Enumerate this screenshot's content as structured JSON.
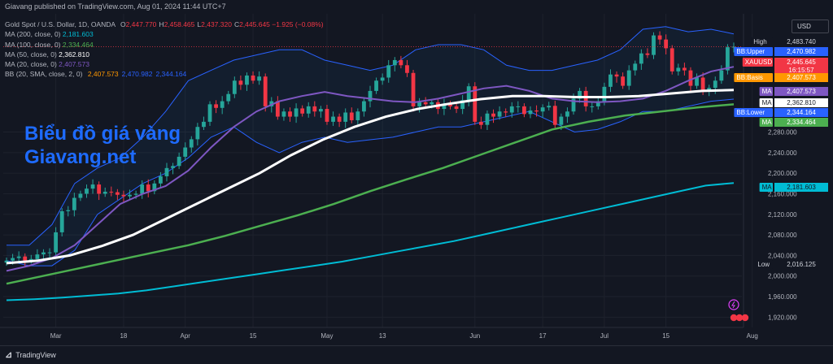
{
  "header": {
    "publisher": "Giavang published on TradingView.com, Aug 01, 2024 11:44 UTC+7"
  },
  "legend": {
    "instrument": "Gold Spot / U.S. Dollar, 1D, OANDA",
    "ohlc": [
      {
        "k": "O",
        "v": "2,447.770"
      },
      {
        "k": "H",
        "v": "2,458.465"
      },
      {
        "k": "L",
        "v": "2,437.320"
      },
      {
        "k": "C",
        "v": "2,445.645"
      }
    ],
    "change": "−1.925 (−0.08%)",
    "indicators": [
      {
        "label": "MA (200, close, 0)",
        "value": "2,181.603",
        "color": "#00bcd4"
      },
      {
        "label": "MA (100, close, 0)",
        "value": "2,334.464",
        "color": "#4caf50"
      },
      {
        "label": "MA (50, close, 0)",
        "value": "2,362.810",
        "color": "#ffffff"
      },
      {
        "label": "MA (20, close, 0)",
        "value": "2,407.573",
        "color": "#7e57c2"
      }
    ],
    "bb_label": "BB (20, SMA, close, 2, 0)",
    "bb_values": [
      {
        "v": "2,407.573",
        "color": "#ff9800"
      },
      {
        "v": "2,470.982",
        "color": "#2962ff"
      },
      {
        "v": "2,344.164",
        "color": "#2962ff"
      }
    ]
  },
  "watermark": {
    "line1": "Biểu đồ giá vàng",
    "line2": "Giavang.net"
  },
  "currency_button": "USD",
  "brand": "TradingView",
  "chart_data": {
    "type": "candlestick",
    "symbol": "XAUUSD",
    "timeframe": "1D",
    "ylim": [
      1900,
      2510
    ],
    "y_ticks": [
      1920,
      1960,
      2000,
      2040,
      2080,
      2120,
      2160,
      2200,
      2240,
      2280
    ],
    "y_tick_labels": [
      "1,920.000",
      "1,960.000",
      "2,000.000",
      "2,040.000",
      "2,080.000",
      "2,120.000",
      "2,160.000",
      "2,200.000",
      "2,240.000",
      "2,280.000"
    ],
    "x_labels": [
      {
        "label": "Mar",
        "i": 8
      },
      {
        "label": "18",
        "i": 19
      },
      {
        "label": "Apr",
        "i": 29
      },
      {
        "label": "15",
        "i": 40
      },
      {
        "label": "May",
        "i": 52
      },
      {
        "label": "13",
        "i": 61
      },
      {
        "label": "Jun",
        "i": 76
      },
      {
        "label": "17",
        "i": 87
      },
      {
        "label": "Jul",
        "i": 97
      },
      {
        "label": "15",
        "i": 107
      },
      {
        "label": "Aug",
        "i": 121
      }
    ],
    "closes": [
      2030,
      2035,
      2038,
      2030,
      2033,
      2042,
      2046,
      2046,
      2085,
      2126,
      2128,
      2152,
      2160,
      2170,
      2178,
      2160,
      2164,
      2163,
      2158,
      2155,
      2158,
      2160,
      2178,
      2165,
      2180,
      2194,
      2210,
      2214,
      2232,
      2250,
      2266,
      2290,
      2300,
      2334,
      2327,
      2340,
      2354,
      2380,
      2372,
      2390,
      2380,
      2388,
      2330,
      2340,
      2310,
      2320,
      2310,
      2326,
      2316,
      2330,
      2320,
      2325,
      2300,
      2310,
      2300,
      2318,
      2303,
      2320,
      2340,
      2360,
      2380,
      2386,
      2410,
      2420,
      2410,
      2395,
      2330,
      2338,
      2334,
      2338,
      2325,
      2335,
      2330,
      2325,
      2342,
      2369,
      2300,
      2294,
      2316,
      2310,
      2320,
      2318,
      2330,
      2330,
      2315,
      2322,
      2320,
      2328,
      2331,
      2294,
      2310,
      2320,
      2345,
      2360,
      2330,
      2330,
      2340,
      2368,
      2392,
      2388,
      2370,
      2400,
      2413,
      2433,
      2430,
      2468,
      2460,
      2443,
      2398,
      2405,
      2400,
      2370,
      2386,
      2360,
      2366,
      2380,
      2400,
      2445,
      2446
    ],
    "ma200_y": [
      1953,
      1955,
      1958,
      1962,
      1966,
      1972,
      1980,
      1988,
      1996,
      2004,
      2012,
      2020,
      2028,
      2038,
      2048,
      2058,
      2068,
      2080,
      2092,
      2104,
      2116,
      2128,
      2140,
      2152,
      2164,
      2176,
      2181
    ],
    "ma100_y": [
      1985,
      2000,
      2015,
      2030,
      2045,
      2060,
      2078,
      2098,
      2118,
      2140,
      2165,
      2188,
      2210,
      2235,
      2260,
      2285,
      2300,
      2312,
      2320,
      2328,
      2334
    ],
    "ma50_y": [
      2025,
      2030,
      2040,
      2058,
      2080,
      2110,
      2140,
      2170,
      2200,
      2235,
      2265,
      2290,
      2310,
      2325,
      2335,
      2344,
      2350,
      2350,
      2348,
      2348,
      2350,
      2355,
      2360,
      2362
    ],
    "ma20_y": [
      2010,
      2020,
      2035,
      2060,
      2100,
      2140,
      2160,
      2175,
      2205,
      2250,
      2290,
      2320,
      2340,
      2350,
      2358,
      2350,
      2345,
      2340,
      2338,
      2345,
      2355,
      2365,
      2370,
      2360,
      2345,
      2340,
      2338,
      2340,
      2345,
      2360,
      2380,
      2398,
      2407
    ],
    "bb_upper_y": [
      2060,
      2060,
      2100,
      2180,
      2210,
      2230,
      2270,
      2320,
      2380,
      2400,
      2420,
      2430,
      2440,
      2440,
      2420,
      2410,
      2400,
      2410,
      2440,
      2450,
      2450,
      2440,
      2410,
      2400,
      2400,
      2410,
      2420,
      2440,
      2480,
      2485,
      2475,
      2480,
      2471
    ],
    "bb_lower_y": [
      2030,
      2020,
      2020,
      2050,
      2120,
      2150,
      2180,
      2200,
      2230,
      2270,
      2290,
      2260,
      2240,
      2260,
      2270,
      2260,
      2265,
      2270,
      2280,
      2290,
      2290,
      2300,
      2310,
      2320,
      2300,
      2280,
      2285,
      2300,
      2320,
      2320,
      2330,
      2340,
      2344
    ],
    "price_labels": [
      {
        "text": "High",
        "value": "2,483.740",
        "bg": "#131722",
        "fg": "#d1d4dc"
      },
      {
        "text": "BB:Upper",
        "value": "2,470.982",
        "bg": "#2962ff",
        "fg": "#ffffff"
      },
      {
        "text": "XAUUSD",
        "value": "2,445.645",
        "sub": "16:15:57",
        "bg": "#f23645",
        "fg": "#ffffff"
      },
      {
        "text": "BB:Basis",
        "value": "2,407.573",
        "bg": "#ff9800",
        "fg": "#ffffff"
      },
      {
        "text": "MA",
        "value": "2,407.573",
        "bg": "#7e57c2",
        "fg": "#ffffff"
      },
      {
        "text": "MA",
        "value": "2,362.810",
        "bg": "#ffffff",
        "fg": "#131722"
      },
      {
        "text": "BB:Lower",
        "value": "2,344.164",
        "bg": "#2962ff",
        "fg": "#ffffff"
      },
      {
        "text": "MA",
        "value": "2,334.464",
        "bg": "#4caf50",
        "fg": "#ffffff"
      },
      {
        "text": "MA",
        "value": "2,181.603",
        "bg": "#00bcd4",
        "fg": "#131722"
      },
      {
        "text": "Low",
        "value": "2,016.125",
        "bg": "#131722",
        "fg": "#d1d4dc"
      }
    ],
    "colors": {
      "up": "#26a69a",
      "down": "#f23645",
      "ma200": "#00bcd4",
      "ma100": "#4caf50",
      "ma50": "#ffffff",
      "ma20": "#7e57c2",
      "bb": "#2962ff",
      "grid": "#1e222d",
      "axis_text": "#b2b5be"
    }
  }
}
